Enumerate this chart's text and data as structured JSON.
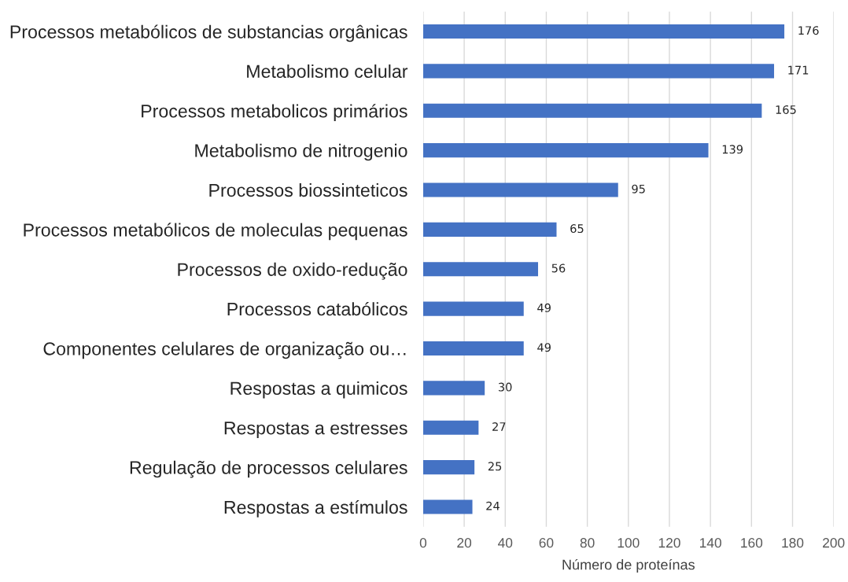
{
  "chart_data": {
    "type": "bar",
    "orientation": "horizontal",
    "xlabel": "Número de proteínas",
    "categories": [
      "Processos metabólicos de substancias orgânicas",
      "Metabolismo celular",
      "Processos metabolicos primários",
      "Metabolismo de nitrogenio",
      "Processos biossinteticos",
      "Processos metabólicos de moleculas pequenas",
      "Processos de oxido-redução",
      "Processos catabólicos",
      "Componentes celulares de organização ou…",
      "Respostas a quimicos",
      "Respostas a estresses",
      "Regulação de processos celulares",
      "Respostas a estímulos"
    ],
    "values": [
      176,
      171,
      165,
      139,
      95,
      65,
      56,
      49,
      49,
      30,
      27,
      25,
      24
    ],
    "color": "#4472c4",
    "xlim": [
      0,
      200
    ],
    "xticks": [
      0,
      20,
      40,
      60,
      80,
      100,
      120,
      140,
      160,
      180,
      200
    ],
    "grid": "x",
    "data_labels": true
  }
}
